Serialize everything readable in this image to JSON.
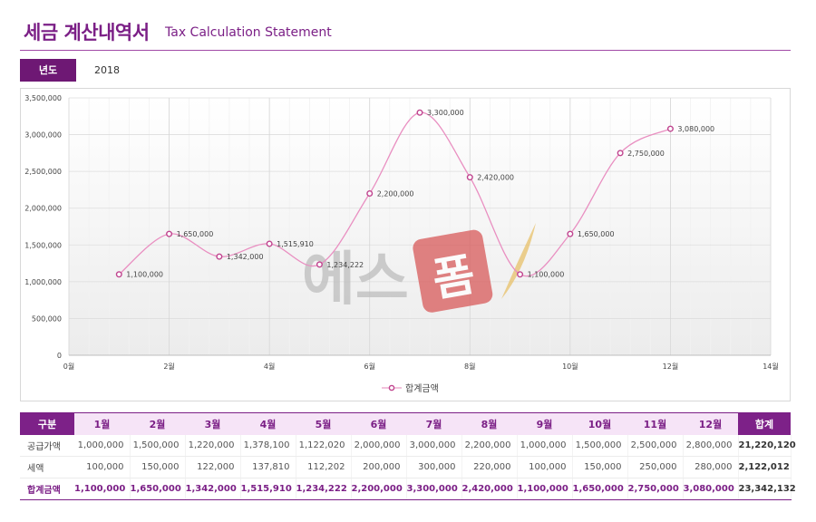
{
  "header": {
    "title_ko": "세금 계산내역서",
    "title_en": "Tax Calculation Statement"
  },
  "filter": {
    "year_label": "년도",
    "year_value": "2018"
  },
  "watermark": {
    "text": "에스",
    "seal_char": "폼"
  },
  "chart_data": {
    "type": "line",
    "x": [
      1,
      2,
      3,
      4,
      5,
      6,
      7,
      8,
      9,
      10,
      11,
      12
    ],
    "series": [
      {
        "name": "합계금액",
        "values": [
          1100000,
          1650000,
          1342000,
          1515910,
          1234222,
          2200000,
          3300000,
          2420000,
          1100000,
          1650000,
          2750000,
          3080000
        ],
        "labels": [
          "1,100,000",
          "1,650,000",
          "1,342,000",
          "1,515,910",
          "1,234,222",
          "2,200,000",
          "3,300,000",
          "2,420,000",
          "1,100,000",
          "1,650,000",
          "2,750,000",
          "3,080,000"
        ],
        "color": "#e98fc1"
      }
    ],
    "xlim": [
      0,
      14
    ],
    "ylim": [
      0,
      3500000
    ],
    "x_ticks": [
      "0월",
      "2월",
      "4월",
      "6월",
      "8월",
      "10월",
      "12월",
      "14월"
    ],
    "x_tick_values": [
      0,
      2,
      4,
      6,
      8,
      10,
      12,
      14
    ],
    "y_ticks": [
      "0",
      "500,000",
      "1,000,000",
      "1,500,000",
      "2,000,000",
      "2,500,000",
      "3,000,000",
      "3,500,000"
    ],
    "y_tick_values": [
      0,
      500000,
      1000000,
      1500000,
      2000000,
      2500000,
      3000000,
      3500000
    ],
    "grid": true,
    "smooth": true,
    "legend_position": "bottom"
  },
  "table": {
    "corner": "구분",
    "months": [
      "1월",
      "2월",
      "3월",
      "4월",
      "5월",
      "6월",
      "7월",
      "8월",
      "9월",
      "10월",
      "11월",
      "12월"
    ],
    "total_header": "합계",
    "rows": [
      {
        "label": "공급가액",
        "values": [
          "1,000,000",
          "1,500,000",
          "1,220,000",
          "1,378,100",
          "1,122,020",
          "2,000,000",
          "3,000,000",
          "2,200,000",
          "1,000,000",
          "1,500,000",
          "2,500,000",
          "2,800,000"
        ],
        "total": "21,220,120"
      },
      {
        "label": "세액",
        "values": [
          "100,000",
          "150,000",
          "122,000",
          "137,810",
          "112,202",
          "200,000",
          "300,000",
          "220,000",
          "100,000",
          "150,000",
          "250,000",
          "280,000"
        ],
        "total": "2,122,012"
      },
      {
        "label": "합계금액",
        "values": [
          "1,100,000",
          "1,650,000",
          "1,342,000",
          "1,515,910",
          "1,234,222",
          "2,200,000",
          "3,300,000",
          "2,420,000",
          "1,100,000",
          "1,650,000",
          "2,750,000",
          "3,080,000"
        ],
        "total": "23,342,132"
      }
    ]
  }
}
